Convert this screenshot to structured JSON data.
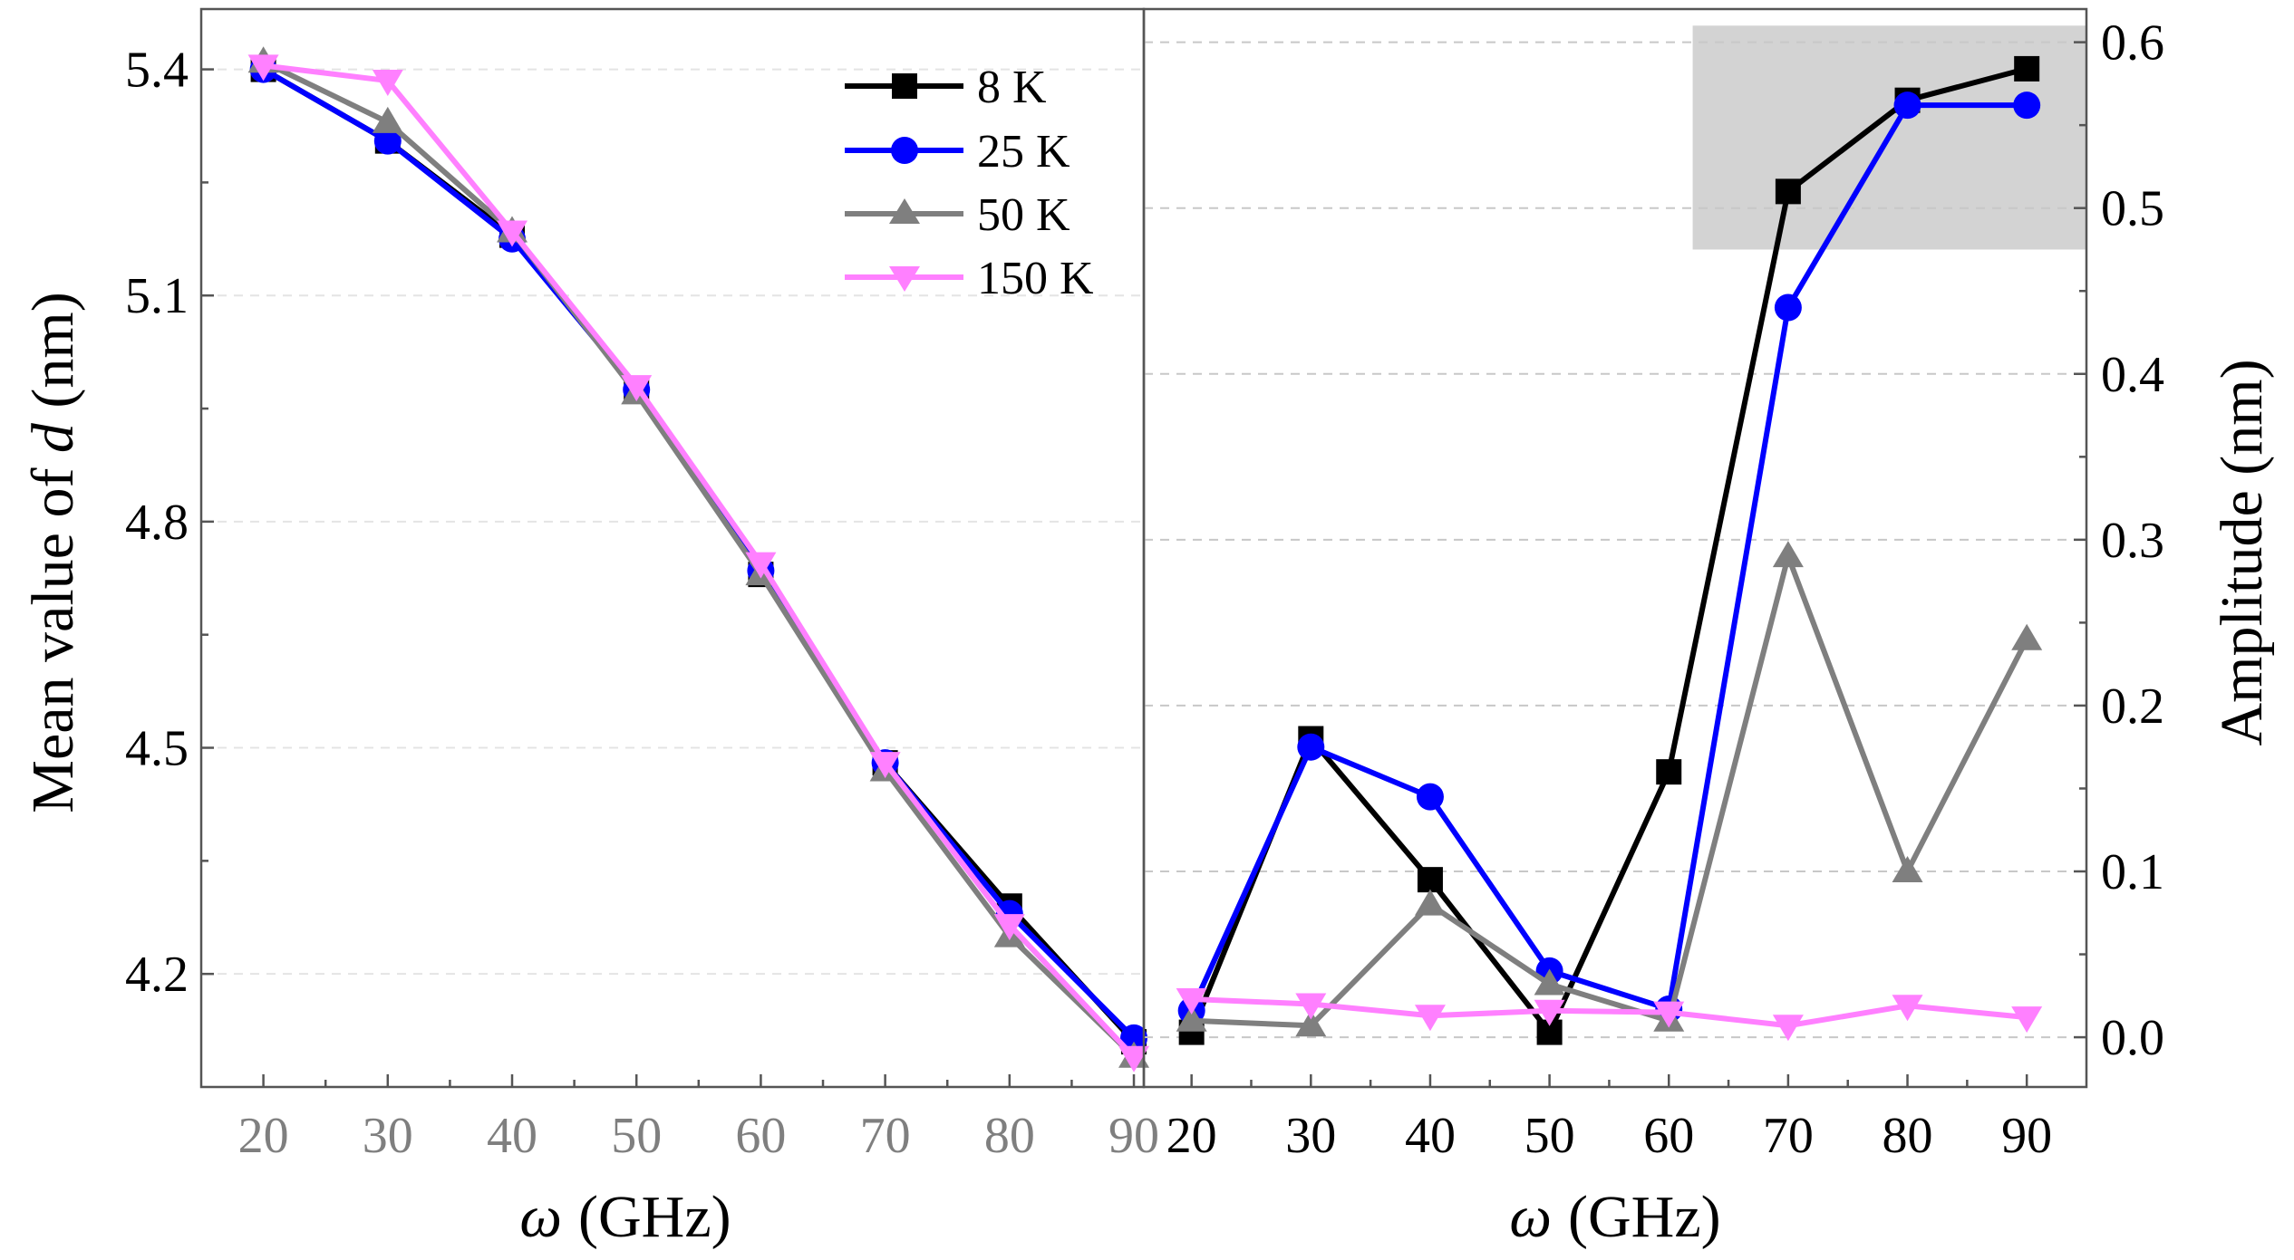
{
  "chart_data": [
    {
      "type": "line",
      "panel": "left",
      "xlabel_symbol": "ω",
      "xlabel_unit": "(GHz)",
      "ylabel_prefix": "Mean value of ",
      "ylabel_symbol": "d",
      "ylabel_suffix": " (nm)",
      "x": [
        20,
        30,
        40,
        50,
        60,
        70,
        80,
        90
      ],
      "xlim": [
        15,
        90.8
      ],
      "ylim": [
        4.05,
        5.48
      ],
      "xticks": [
        "20",
        "30",
        "40",
        "50",
        "60",
        "70",
        "80",
        "90"
      ],
      "yticks": [
        "4.2",
        "4.5",
        "4.8",
        "5.1",
        "5.4"
      ],
      "ytick_values": [
        4.2,
        4.5,
        4.8,
        5.1,
        5.4
      ],
      "tick_label_color": "#7f7f7f",
      "series": [
        {
          "name": "8 K",
          "color": "#000000",
          "marker": "square",
          "values": [
            5.4,
            5.305,
            5.18,
            4.975,
            4.73,
            4.48,
            4.29,
            4.11
          ]
        },
        {
          "name": "25 K",
          "color": "#0000ff",
          "marker": "circle",
          "values": [
            5.4,
            5.305,
            5.175,
            4.975,
            4.735,
            4.48,
            4.28,
            4.115
          ]
        },
        {
          "name": "50 K",
          "color": "#7f7f7f",
          "marker": "triangle-up",
          "values": [
            5.41,
            5.33,
            5.185,
            4.97,
            4.73,
            4.47,
            4.25,
            4.09
          ]
        },
        {
          "name": "150 K",
          "color": "#ff80ff",
          "marker": "triangle-down",
          "values": [
            5.405,
            5.385,
            5.185,
            4.98,
            4.745,
            4.48,
            4.265,
            4.09
          ]
        }
      ],
      "legend_position": "top-right",
      "legend": [
        "8 K",
        "25 K",
        "50 K",
        "150 K"
      ]
    },
    {
      "type": "line",
      "panel": "right",
      "xlabel_symbol": "ω",
      "xlabel_unit": "(GHz)",
      "ylabel": "Amplitude (nm)",
      "x": [
        20,
        30,
        40,
        50,
        60,
        70,
        80,
        90
      ],
      "xlim": [
        16,
        95
      ],
      "ylim": [
        -0.03,
        0.62
      ],
      "xticks": [
        "20",
        "30",
        "40",
        "50",
        "60",
        "70",
        "80",
        "90"
      ],
      "yticks": [
        "0.0",
        "0.1",
        "0.2",
        "0.3",
        "0.4",
        "0.5",
        "0.6"
      ],
      "ytick_values": [
        0.0,
        0.1,
        0.2,
        0.3,
        0.4,
        0.5,
        0.6
      ],
      "tick_label_color": "#000000",
      "highlight_region": {
        "x_range": [
          62,
          95
        ],
        "y_range": [
          0.475,
          0.61
        ],
        "color": "#d3d3d3"
      },
      "series": [
        {
          "name": "8 K",
          "color": "#000000",
          "marker": "square",
          "values": [
            0.003,
            0.18,
            0.095,
            0.003,
            0.16,
            0.51,
            0.565,
            0.584
          ]
        },
        {
          "name": "25 K",
          "color": "#0000ff",
          "marker": "circle",
          "values": [
            0.016,
            0.175,
            0.145,
            0.04,
            0.017,
            0.44,
            0.562,
            0.562
          ]
        },
        {
          "name": "50 K",
          "color": "#7f7f7f",
          "marker": "triangle-up",
          "values": [
            0.01,
            0.007,
            0.08,
            0.032,
            0.01,
            0.29,
            0.1,
            0.24
          ]
        },
        {
          "name": "150 K",
          "color": "#ff80ff",
          "marker": "triangle-down",
          "values": [
            0.023,
            0.02,
            0.013,
            0.016,
            0.015,
            0.007,
            0.019,
            0.012
          ]
        }
      ]
    }
  ]
}
